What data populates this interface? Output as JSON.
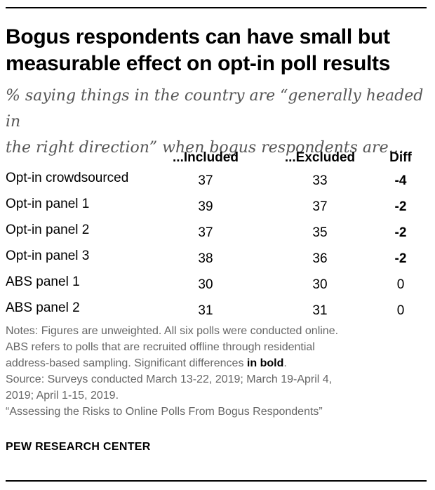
{
  "title_lines": [
    "Bogus respondents can have small but",
    "measurable effect on opt-in poll results"
  ],
  "subtitle_lines": [
    "% saying things in the country are “generally headed in",
    "the right direction” when bogus respondents are…"
  ],
  "chart_data": {
    "type": "table",
    "columns": [
      "...Included",
      "...Excluded",
      "Diff"
    ],
    "rows": [
      {
        "label": "Opt-in crowdsourced",
        "included": 37,
        "excluded": 33,
        "diff": "-4",
        "significant": true
      },
      {
        "label": "Opt-in panel 1",
        "included": 39,
        "excluded": 37,
        "diff": "-2",
        "significant": true
      },
      {
        "label": "Opt-in panel 2",
        "included": 37,
        "excluded": 35,
        "diff": "-2",
        "significant": true
      },
      {
        "label": "Opt-in panel 3",
        "included": 38,
        "excluded": 36,
        "diff": "-2",
        "significant": true
      },
      {
        "label": "ABS panel 1",
        "included": 30,
        "excluded": 30,
        "diff": "0",
        "significant": false
      },
      {
        "label": "ABS panel 2",
        "included": 31,
        "excluded": 31,
        "diff": "0",
        "significant": false
      }
    ]
  },
  "notes": {
    "line1": "Notes: Figures are unweighted. All six polls were conducted online.",
    "line2": "ABS refers to polls that are recruited offline through residential",
    "line3_text": "address-based sampling.  Significant differences ",
    "line3_bold": "in bold",
    "line3_end": ".",
    "source1": "Source: Surveys conducted March 13-22, 2019; March 19-April 4,",
    "source2": "2019; April 1-15, 2019.",
    "report": "“Assessing the Risks to Online Polls From Bogus Respondents”"
  },
  "brand": "PEW RESEARCH CENTER"
}
